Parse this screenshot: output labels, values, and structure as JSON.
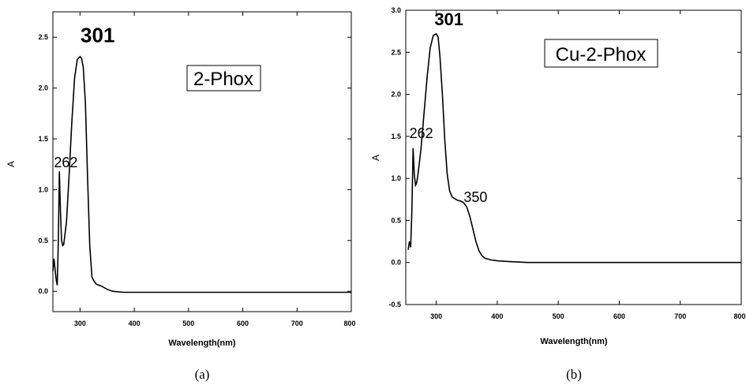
{
  "chart_data": [
    {
      "type": "line",
      "title": "2-Phox",
      "xlabel": "Wavelength(nm)",
      "ylabel": "A",
      "caption": "(a)",
      "xlim": [
        250,
        800
      ],
      "ylim": [
        -0.2,
        2.75
      ],
      "xticks": [
        300,
        400,
        500,
        600,
        700,
        800
      ],
      "yticks": [
        0.0,
        0.5,
        1.0,
        1.5,
        2.0,
        2.5
      ],
      "xtick_labels": [
        "300",
        "400",
        "500",
        "600",
        "700",
        "800"
      ],
      "ytick_labels": [
        "0.0",
        "0.5",
        "1.0",
        "1.5",
        "2.0",
        "2.5"
      ],
      "grid": false,
      "annotations": [
        {
          "text": "301",
          "x": 301,
          "y": 2.45,
          "size": "large"
        },
        {
          "text": "262",
          "x": 252,
          "y": 1.22,
          "size": "medium"
        }
      ],
      "series": [
        {
          "x": [
            250,
            252,
            254,
            256,
            258,
            260,
            262,
            264,
            266,
            268,
            270,
            275,
            280,
            285,
            290,
            295,
            300,
            303,
            306,
            310,
            314,
            318,
            322,
            326,
            330,
            340,
            350,
            360,
            380,
            420,
            500,
            600,
            700,
            800
          ],
          "y": [
            0.2,
            0.32,
            0.22,
            0.12,
            0.06,
            0.5,
            1.18,
            0.78,
            0.5,
            0.45,
            0.46,
            0.68,
            1.15,
            1.68,
            2.1,
            2.28,
            2.31,
            2.29,
            2.2,
            1.85,
            1.1,
            0.45,
            0.14,
            0.1,
            0.07,
            0.05,
            0.02,
            0.0,
            -0.01,
            -0.01,
            -0.01,
            -0.01,
            -0.01,
            -0.01
          ]
        }
      ]
    },
    {
      "type": "line",
      "title": "Cu-2-Phox",
      "xlabel": "Wavelength(nm)",
      "ylabel": "A",
      "caption": "(b)",
      "xlim": [
        250,
        800
      ],
      "ylim": [
        -0.5,
        3.0
      ],
      "xticks": [
        300,
        400,
        500,
        600,
        700,
        800
      ],
      "yticks": [
        -0.5,
        0.0,
        0.5,
        1.0,
        1.5,
        2.0,
        2.5,
        3.0
      ],
      "xtick_labels": [
        "300",
        "400",
        "500",
        "600",
        "700",
        "800"
      ],
      "ytick_labels": [
        "-0.5",
        "0.0",
        "0.5",
        "1.0",
        "1.5",
        "2.0",
        "2.5",
        "3.0"
      ],
      "grid": false,
      "annotations": [
        {
          "text": "301",
          "x": 297,
          "y": 2.82,
          "size": "large"
        },
        {
          "text": "262",
          "x": 256,
          "y": 1.48,
          "size": "medium"
        },
        {
          "text": "350",
          "x": 345,
          "y": 0.72,
          "size": "medium"
        }
      ],
      "series": [
        {
          "x": [
            254,
            256,
            258,
            260,
            262,
            264,
            266,
            268,
            270,
            275,
            280,
            285,
            290,
            295,
            300,
            303,
            306,
            310,
            314,
            318,
            322,
            326,
            330,
            335,
            340,
            345,
            350,
            355,
            360,
            365,
            370,
            375,
            380,
            390,
            400,
            420,
            450,
            500,
            600,
            700,
            800
          ],
          "y": [
            0.15,
            0.25,
            0.18,
            0.6,
            1.36,
            1.05,
            0.92,
            0.95,
            1.05,
            1.35,
            1.78,
            2.2,
            2.55,
            2.7,
            2.72,
            2.68,
            2.45,
            2.0,
            1.45,
            1.05,
            0.85,
            0.78,
            0.76,
            0.74,
            0.73,
            0.71,
            0.66,
            0.55,
            0.4,
            0.25,
            0.14,
            0.08,
            0.05,
            0.03,
            0.02,
            0.01,
            0.0,
            0.0,
            0.0,
            0.0,
            0.0
          ]
        }
      ]
    }
  ]
}
